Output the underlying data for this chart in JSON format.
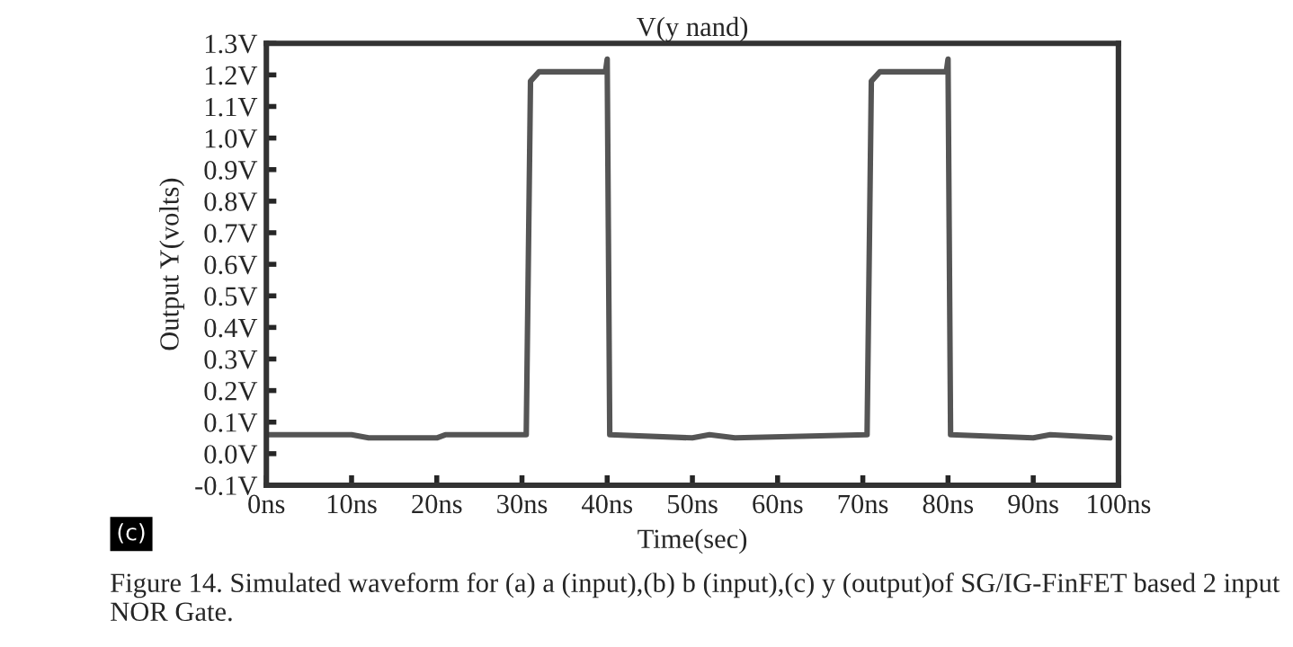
{
  "chart_data": {
    "type": "line",
    "title": "V(y nand)",
    "xlabel": "Time(sec)",
    "ylabel": "Output Y(volts)",
    "x": [
      0,
      10,
      12,
      20,
      21,
      30.5,
      31,
      32,
      39.8,
      40,
      40.3,
      50,
      52,
      55,
      70.5,
      71,
      72,
      79.8,
      80,
      80.3,
      90,
      92,
      99
    ],
    "series": [
      {
        "color": "#555555",
        "values": [
          0.06,
          0.06,
          0.05,
          0.05,
          0.06,
          0.06,
          1.18,
          1.21,
          1.21,
          1.25,
          0.06,
          0.05,
          0.06,
          0.05,
          0.06,
          1.18,
          1.21,
          1.21,
          1.25,
          0.06,
          0.05,
          0.06,
          0.05
        ]
      }
    ],
    "xlim": [
      0,
      100
    ],
    "ylim": [
      -0.1,
      1.3
    ],
    "xticks": [
      {
        "value": 0,
        "label": "0ns"
      },
      {
        "value": 10,
        "label": "10ns"
      },
      {
        "value": 20,
        "label": "20ns"
      },
      {
        "value": 30,
        "label": "30ns"
      },
      {
        "value": 40,
        "label": "40ns"
      },
      {
        "value": 50,
        "label": "50ns"
      },
      {
        "value": 60,
        "label": "60ns"
      },
      {
        "value": 70,
        "label": "70ns"
      },
      {
        "value": 80,
        "label": "80ns"
      },
      {
        "value": 90,
        "label": "90ns"
      },
      {
        "value": 100,
        "label": "100ns"
      }
    ],
    "yticks": [
      {
        "value": -0.1,
        "label": "-0.1V"
      },
      {
        "value": 0.0,
        "label": "0.0V"
      },
      {
        "value": 0.1,
        "label": "0.1V"
      },
      {
        "value": 0.2,
        "label": "0.2V"
      },
      {
        "value": 0.3,
        "label": "0.3V"
      },
      {
        "value": 0.4,
        "label": "0.4V"
      },
      {
        "value": 0.5,
        "label": "0.5V"
      },
      {
        "value": 0.6,
        "label": "0.6V"
      },
      {
        "value": 0.7,
        "label": "0.7V"
      },
      {
        "value": 0.8,
        "label": "0.8V"
      },
      {
        "value": 0.9,
        "label": "0.9V"
      },
      {
        "value": 1.0,
        "label": "1.0V"
      },
      {
        "value": 1.1,
        "label": "1.1V"
      },
      {
        "value": 1.2,
        "label": "1.2V"
      },
      {
        "value": 1.3,
        "label": "1.3V"
      }
    ],
    "grid": false,
    "marker": "none",
    "line_style": "solid",
    "annotations": [
      "(c)",
      "Figure 14. Simulated waveform for (a) a (input),(b) b (input),(c) y (output)of SG/IG-FinFET based 2 input NOR Gate."
    ]
  }
}
